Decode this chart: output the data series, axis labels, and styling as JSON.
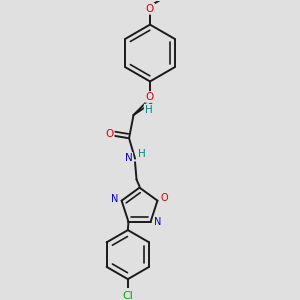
{
  "background_color": "#e0e0e0",
  "bond_color": "#1a1a1a",
  "atom_colors": {
    "O": "#dd0000",
    "N": "#0000cc",
    "Cl": "#00aa00",
    "C": "#1a1a1a",
    "H": "#008888"
  },
  "figsize": [
    3.0,
    3.0
  ],
  "dpi": 100,
  "lw": 1.4,
  "fontsize": 7.5
}
